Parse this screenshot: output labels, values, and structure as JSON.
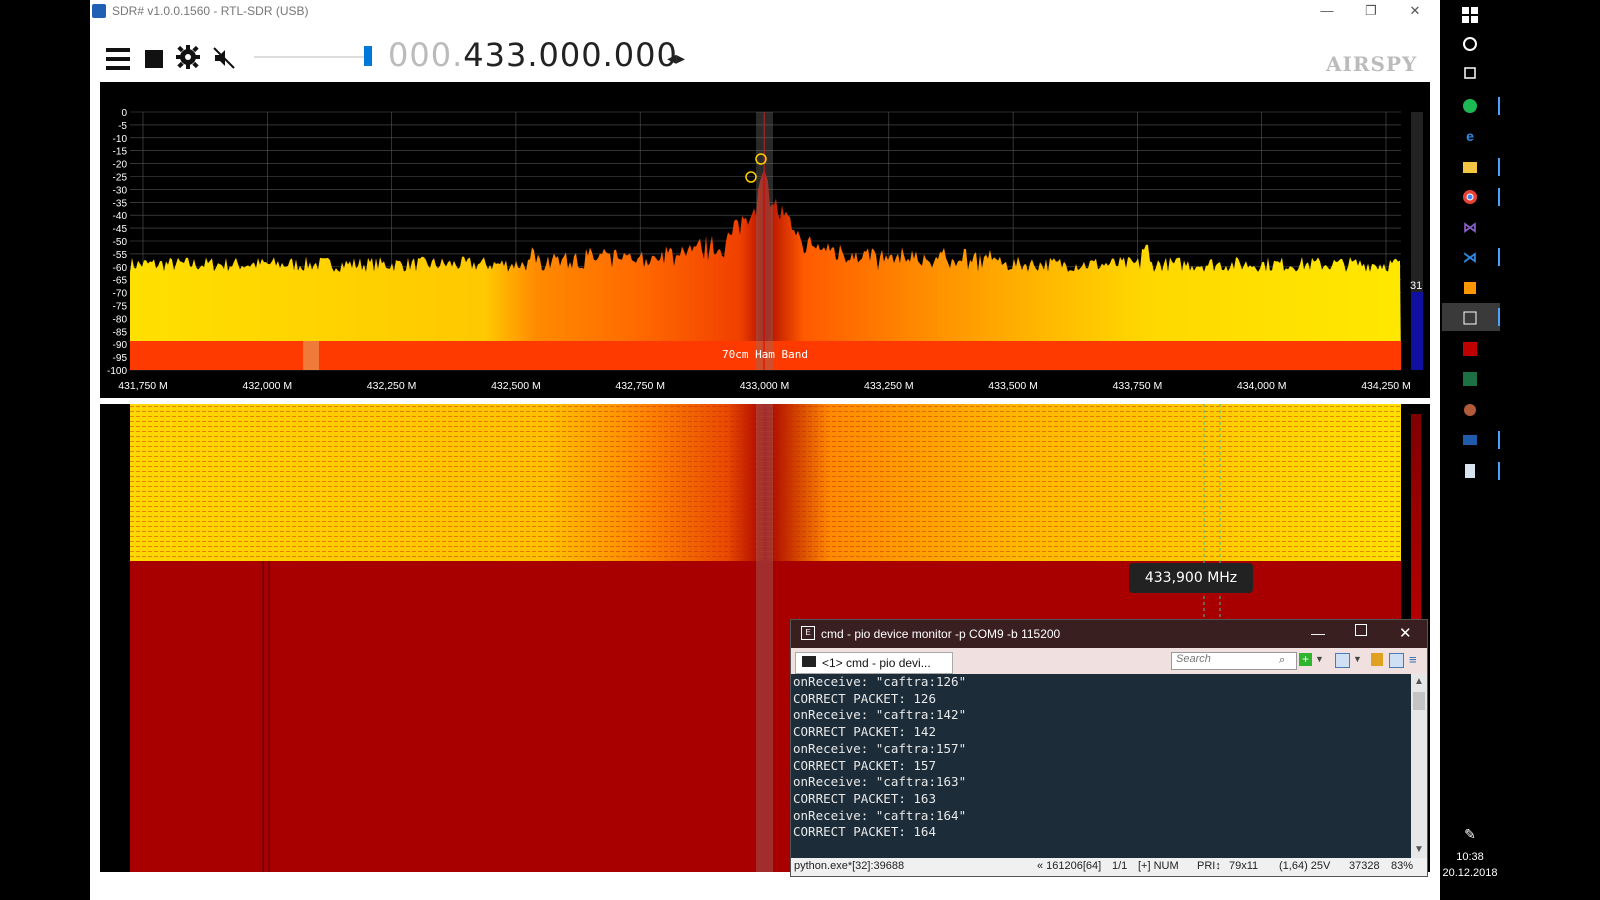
{
  "window": {
    "title": "SDR# v1.0.0.1560 - RTL-SDR (USB)",
    "controls": {
      "minimize": "—",
      "restore": "❐",
      "close": "✕"
    }
  },
  "toolbar": {
    "freq_dim": "000.",
    "freq_main": "433.000.000",
    "freq_arrows": "◂▸",
    "logo": "AIRSPY",
    "volume": 0.95
  },
  "spectrum": {
    "y_ticks": [
      "0",
      "-5",
      "-10",
      "-15",
      "-20",
      "-25",
      "-30",
      "-35",
      "-40",
      "-45",
      "-50",
      "-55",
      "-60",
      "-65",
      "-70",
      "-75",
      "-80",
      "-85",
      "-90",
      "-95",
      "-100"
    ],
    "x_ticks": [
      "431,750 M",
      "432,000 M",
      "432,250 M",
      "432,500 M",
      "432,750 M",
      "433,000 M",
      "433,250 M",
      "433,500 M",
      "433,750 M",
      "434,000 M",
      "434,250 M"
    ],
    "band_label": "70cm Ham Band",
    "gain_value": "31",
    "colors": {
      "yellow": "#ffe800",
      "orange": "#ff6a00",
      "red": "#c81000",
      "band": "#ff3300"
    }
  },
  "waterfall": {
    "tooltip": "433,900 MHz",
    "colors": {
      "top": "#ffd200",
      "bottom": "#a80000"
    }
  },
  "cmd": {
    "title": "cmd - pio  device monitor -p COM9 -b 115200",
    "tab_label": "<1> cmd - pio  devi...",
    "search_placeholder": "Search",
    "lines": [
      "onReceive: \"caftra:126\"",
      "CORRECT PACKET: 126",
      "onReceive: \"caftra:142\"",
      "CORRECT PACKET: 142",
      "onReceive: \"caftra:157\"",
      "CORRECT PACKET: 157",
      "onReceive: \"caftra:163\"",
      "CORRECT PACKET: 163",
      "onReceive: \"caftra:164\"",
      "CORRECT PACKET: 164"
    ],
    "status": {
      "process": "python.exe*[32]:39688",
      "pos": "« 161206[64]",
      "page": "1/1",
      "mode": "[+] NUM",
      "pri": "PRI↕",
      "size": "79x11",
      "coords": "(1,64) 25V",
      "mem": "37328",
      "pct": "83%"
    }
  },
  "taskbar": {
    "time": "10:38",
    "date": "20.12.2018"
  }
}
